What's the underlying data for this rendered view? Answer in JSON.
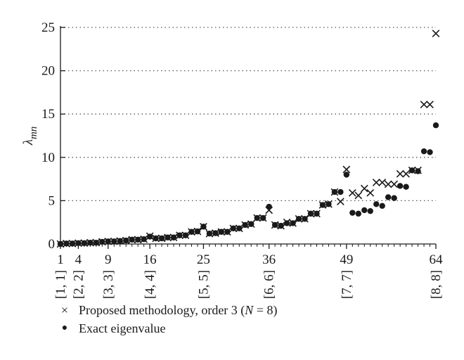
{
  "chart_data": {
    "type": "scatter",
    "title": "",
    "ylabel": "λ_mn",
    "ylabel_main": "λ",
    "ylabel_sub": "mn",
    "xlabel": "",
    "ylim": [
      0,
      25
    ],
    "xlim": [
      1,
      64
    ],
    "yticks": [
      0,
      5,
      10,
      15,
      20,
      25
    ],
    "xticks": [
      1,
      4,
      9,
      16,
      25,
      36,
      49,
      64
    ],
    "xtick_labels": [
      "1",
      "4",
      "9",
      "16",
      "25",
      "36",
      "49",
      "64"
    ],
    "xtick_sublabels": [
      {
        "x": 1,
        "label": "[1, 1]"
      },
      {
        "x": 4,
        "label": "[2, 2]"
      },
      {
        "x": 9,
        "label": "[3, 3]"
      },
      {
        "x": 16,
        "label": "[4, 4]"
      },
      {
        "x": 25,
        "label": "[5, 5]"
      },
      {
        "x": 36,
        "label": "[6, 6]"
      },
      {
        "x": 49,
        "label": "[7, 7]"
      },
      {
        "x": 64,
        "label": "[8, 8]"
      }
    ],
    "grid": "horizontal-dotted",
    "legend_position": "bottom-left",
    "series": [
      {
        "name": "Proposed methodology, order 3 (N = 8)",
        "marker": "x",
        "values": [
          0.0,
          0.05,
          0.05,
          0.1,
          0.1,
          0.15,
          0.15,
          0.25,
          0.3,
          0.3,
          0.35,
          0.4,
          0.5,
          0.5,
          0.55,
          0.9,
          0.65,
          0.65,
          0.75,
          0.75,
          1.0,
          1.0,
          1.4,
          1.45,
          2.0,
          1.2,
          1.25,
          1.4,
          1.4,
          1.8,
          1.8,
          2.2,
          2.3,
          3.0,
          3.0,
          3.9,
          2.2,
          2.1,
          2.5,
          2.4,
          2.9,
          2.9,
          3.5,
          3.5,
          4.5,
          4.6,
          6.0,
          4.9,
          8.6,
          5.9,
          5.6,
          6.4,
          5.9,
          7.1,
          7.1,
          6.9,
          6.9,
          8.1,
          8.1,
          8.5,
          8.5,
          16.1,
          16.1,
          24.3
        ]
      },
      {
        "name": "Exact eigenvalue",
        "marker": "dot",
        "values": [
          0.0,
          0.05,
          0.05,
          0.1,
          0.1,
          0.15,
          0.15,
          0.25,
          0.3,
          0.3,
          0.35,
          0.4,
          0.5,
          0.5,
          0.55,
          0.85,
          0.65,
          0.65,
          0.75,
          0.75,
          1.0,
          1.0,
          1.4,
          1.45,
          2.0,
          1.2,
          1.25,
          1.4,
          1.4,
          1.8,
          1.8,
          2.2,
          2.3,
          3.0,
          3.0,
          4.3,
          2.2,
          2.1,
          2.4,
          2.4,
          2.9,
          2.9,
          3.5,
          3.5,
          4.5,
          4.6,
          6.0,
          6.0,
          8.0,
          3.6,
          3.5,
          3.9,
          3.8,
          4.6,
          4.4,
          5.4,
          5.3,
          6.7,
          6.6,
          8.5,
          8.4,
          10.7,
          10.6,
          13.7
        ]
      }
    ]
  },
  "legend": {
    "items": [
      {
        "label_pre": "Proposed methodology, order 3 (",
        "label_italic": "N",
        "label_post": " = 8)",
        "marker": "×"
      },
      {
        "label": "Exact eigenvalue",
        "marker": "●"
      }
    ]
  }
}
